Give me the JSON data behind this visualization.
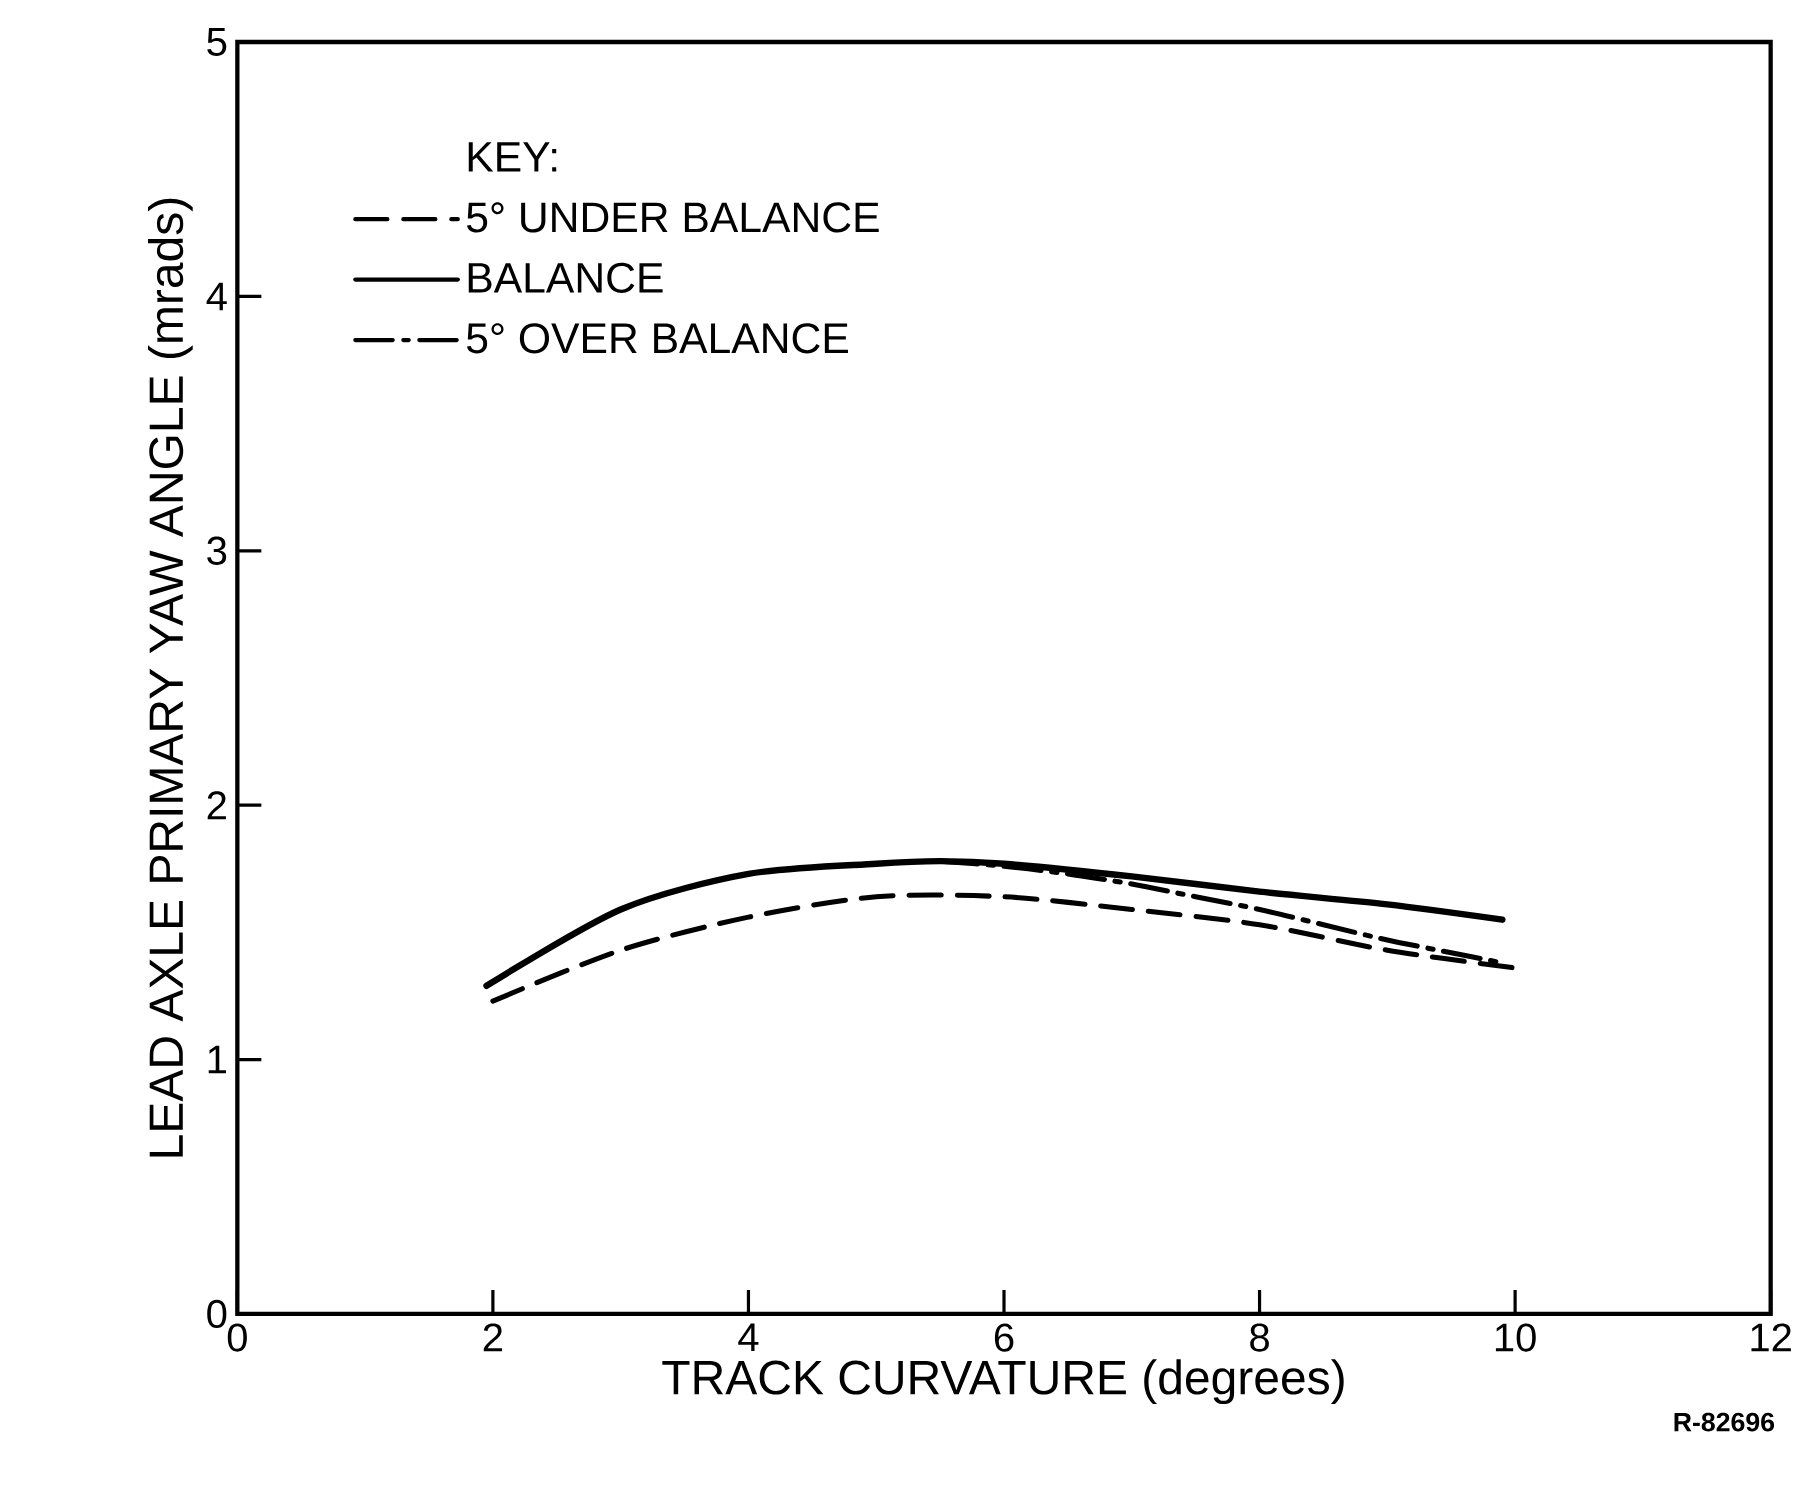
{
  "chart_data": {
    "type": "line",
    "xlabel": "TRACK CURVATURE (degrees)",
    "ylabel": "LEAD AXLE PRIMARY YAW ANGLE (mrads)",
    "legend_title": "KEY:",
    "legend": "top left",
    "xlim": [
      0,
      12
    ],
    "xticks": [
      0,
      2,
      4,
      6,
      8,
      10,
      12
    ],
    "ylim": [
      0,
      5
    ],
    "yticks": [
      0,
      1,
      2,
      3,
      4,
      5
    ],
    "grid": false,
    "annotations": [
      "R-82696"
    ],
    "series": [
      {
        "name": "5° UNDER BALANCE",
        "color": "#000000",
        "line_style": "dashed",
        "x": [
          2,
          3,
          4,
          5,
          6,
          7,
          8,
          9,
          10
        ],
        "values": [
          1.23,
          1.43,
          1.56,
          1.64,
          1.64,
          1.59,
          1.53,
          1.43,
          1.36
        ]
      },
      {
        "name": "BALANCE",
        "color": "#000000",
        "line_style": "solid",
        "x": [
          1.95,
          3,
          4,
          5,
          5.5,
          6,
          7,
          8,
          9,
          9.9
        ],
        "values": [
          1.29,
          1.59,
          1.73,
          1.77,
          1.78,
          1.77,
          1.72,
          1.66,
          1.61,
          1.55
        ]
      },
      {
        "name": "5° OVER BALANCE",
        "color": "#000000",
        "line_style": "dashdot",
        "x": [
          5.5,
          6,
          6.5,
          7,
          7.5,
          8,
          8.5,
          9,
          9.5,
          9.9
        ],
        "values": [
          1.78,
          1.76,
          1.73,
          1.69,
          1.64,
          1.59,
          1.53,
          1.47,
          1.42,
          1.38
        ]
      }
    ]
  }
}
